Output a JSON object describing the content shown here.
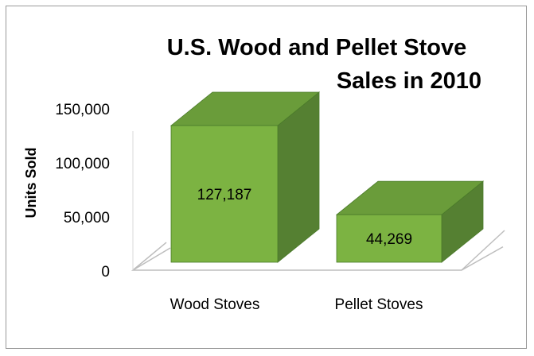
{
  "chart_data": {
    "type": "bar",
    "title_line1": "U.S. Wood and Pellet Stove",
    "title_line2": "Sales in 2010",
    "ylabel": "Units Sold",
    "xlabel": "",
    "categories": [
      "Wood Stoves",
      "Pellet Stoves"
    ],
    "values": [
      127187,
      44269
    ],
    "value_labels": [
      "127,187",
      "44,269"
    ],
    "ylim": [
      0,
      150000
    ],
    "yticks": [
      0,
      50000,
      100000,
      150000
    ],
    "ytick_labels": [
      "0",
      "50,000",
      "100,000",
      "150,000"
    ],
    "grid": false,
    "legend": "none",
    "three_d": true,
    "colors": {
      "front": "#7cb342",
      "top": "#6a9c3a",
      "side": "#558032",
      "edge": "#4a7a2a"
    }
  }
}
